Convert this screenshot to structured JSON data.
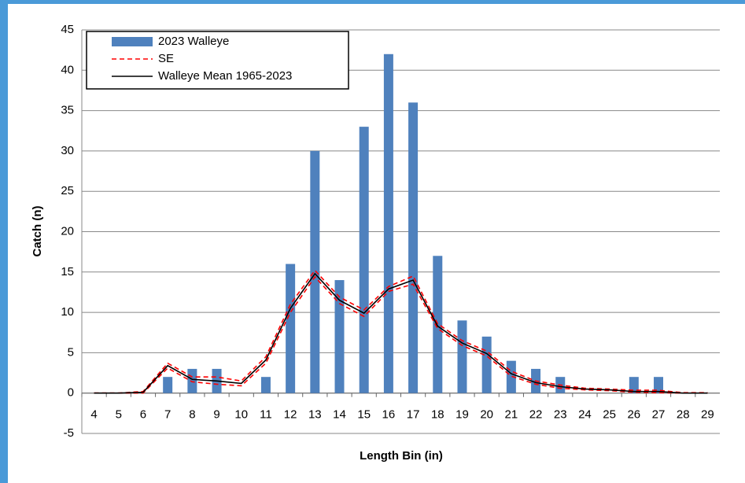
{
  "chart_data": {
    "type": "bar_line",
    "x_label": "Length Bin (in)",
    "y_label": "Catch (n)",
    "categories": [
      "4",
      "5",
      "6",
      "7",
      "8",
      "9",
      "10",
      "11",
      "12",
      "13",
      "14",
      "15",
      "16",
      "17",
      "18",
      "19",
      "20",
      "21",
      "22",
      "23",
      "24",
      "25",
      "26",
      "27",
      "28",
      "29"
    ],
    "series": [
      {
        "name": "2023 Walleye",
        "kind": "bar",
        "color": "#4f81bd",
        "values": [
          0,
          0,
          0,
          2,
          3,
          3,
          0,
          2,
          16,
          30,
          14,
          33,
          42,
          36,
          17,
          9,
          7,
          4,
          3,
          2,
          0,
          0,
          2,
          2,
          0,
          0
        ]
      },
      {
        "name": "SE",
        "kind": "band",
        "color": "#ff0000",
        "upper": [
          0,
          0,
          0.2,
          3.7,
          2.0,
          2.0,
          1.5,
          4.5,
          11,
          15.2,
          11.9,
          10.3,
          13.2,
          14.5,
          8.6,
          6.5,
          5.2,
          2.7,
          1.5,
          1.0,
          0.6,
          0.5,
          0.35,
          0.35,
          0.05,
          0.05
        ],
        "lower": [
          0,
          0,
          0,
          3.1,
          1.4,
          1.1,
          0.9,
          3.7,
          10,
          14.4,
          11.1,
          9.5,
          12.6,
          13.5,
          8.0,
          5.9,
          4.6,
          2.1,
          1.1,
          0.6,
          0.4,
          0.3,
          0.1,
          0.05,
          0,
          0
        ]
      },
      {
        "name": "Walleye Mean 1965-2023",
        "kind": "line",
        "color": "#000000",
        "values": [
          0,
          0,
          0.1,
          3.4,
          1.7,
          1.5,
          1.2,
          4.1,
          10.5,
          14.8,
          11.5,
          9.9,
          12.9,
          14,
          8.3,
          6.2,
          4.9,
          2.4,
          1.3,
          0.8,
          0.5,
          0.4,
          0.2,
          0.2,
          0,
          0
        ]
      }
    ],
    "ylim": [
      -5,
      45
    ],
    "yticks": [
      -5,
      0,
      5,
      10,
      15,
      20,
      25,
      30,
      35,
      40,
      45
    ],
    "grid": true
  }
}
